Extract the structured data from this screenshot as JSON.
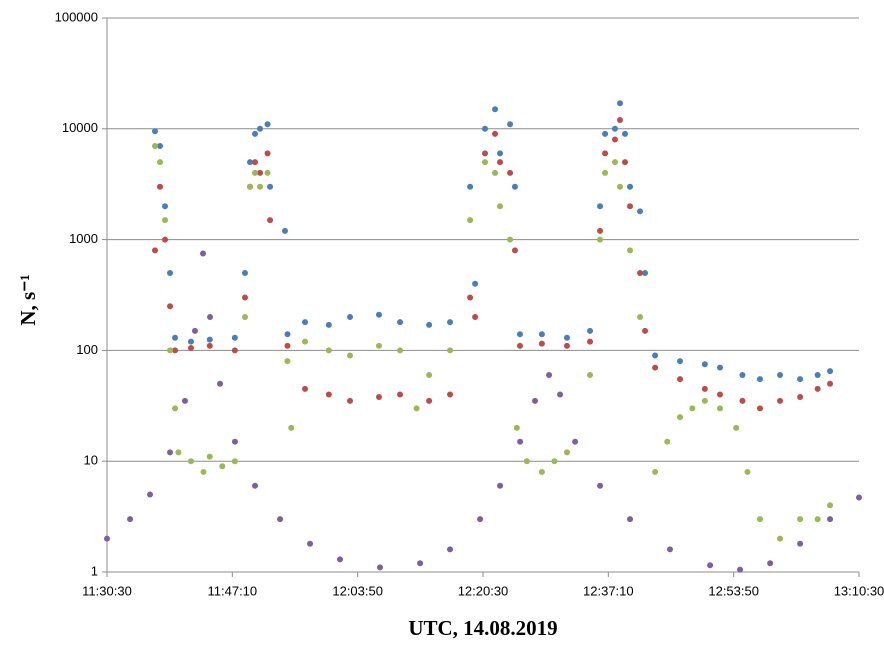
{
  "chart_data": {
    "type": "scatter",
    "xlabel": "UTC, 14.08.2019",
    "ylabel": "N, s⁻¹",
    "xlim": [
      41430,
      47430
    ],
    "xticks": [
      {
        "value": 41430,
        "label": "11:30:30"
      },
      {
        "value": 42430,
        "label": "11:47:10"
      },
      {
        "value": 43430,
        "label": "12:03:50"
      },
      {
        "value": 44430,
        "label": "12:20:30"
      },
      {
        "value": 45430,
        "label": "12:37:10"
      },
      {
        "value": 46430,
        "label": "12:53:50"
      },
      {
        "value": 47430,
        "label": "13:10:30"
      }
    ],
    "ylim": [
      1,
      100000
    ],
    "yticks": [
      1,
      10,
      100,
      1000,
      10000,
      100000
    ],
    "ylog": true,
    "grid": true,
    "series": [
      {
        "color": "#4a7ebb",
        "x": [
          41813,
          41853,
          41893,
          41933,
          41973,
          42100,
          42250,
          42450,
          42531,
          42571,
          42611,
          42651,
          42711,
          42731,
          42850,
          42870,
          43010,
          43200,
          43369,
          43600,
          43768,
          44000,
          44167,
          44327,
          44367,
          44446,
          44526,
          44566,
          44646,
          44685,
          44725,
          44900,
          45100,
          45284,
          45364,
          45404,
          45483,
          45523,
          45563,
          45603,
          45683,
          45723,
          45803,
          46002,
          46200,
          46321,
          46500,
          46640,
          46800,
          46960,
          47100,
          47199
        ],
        "values": [
          9500,
          7000,
          2000,
          500,
          130,
          120,
          125,
          130,
          500,
          5000,
          9000,
          10000,
          11000,
          3000,
          1200,
          140,
          180,
          170,
          200,
          210,
          180,
          170,
          180,
          3000,
          400,
          10000,
          15000,
          6000,
          11000,
          3000,
          140,
          140,
          130,
          150,
          2000,
          9000,
          10000,
          17000,
          9000,
          3000,
          1800,
          500,
          90,
          80,
          75,
          70,
          60,
          55,
          60,
          55,
          60,
          65
        ]
      },
      {
        "color": "#be4b48",
        "x": [
          41813,
          41853,
          41893,
          41933,
          41973,
          42100,
          42250,
          42450,
          42531,
          42571,
          42611,
          42651,
          42711,
          42731,
          42870,
          43010,
          43200,
          43369,
          43600,
          43768,
          44000,
          44167,
          44327,
          44367,
          44446,
          44526,
          44566,
          44646,
          44685,
          44725,
          44900,
          45100,
          45284,
          45364,
          45404,
          45483,
          45523,
          45563,
          45603,
          45683,
          45723,
          45803,
          46002,
          46200,
          46321,
          46500,
          46640,
          46800,
          46960,
          47100,
          47199
        ],
        "values": [
          800,
          3000,
          1000,
          250,
          100,
          105,
          110,
          100,
          300,
          3000,
          5000,
          4000,
          6000,
          1500,
          110,
          45,
          40,
          35,
          38,
          40,
          35,
          40,
          300,
          200,
          6000,
          9000,
          5000,
          4000,
          800,
          110,
          115,
          110,
          120,
          1200,
          6000,
          8000,
          12000,
          5000,
          2000,
          500,
          150,
          70,
          55,
          45,
          40,
          35,
          30,
          35,
          38,
          45,
          50
        ]
      },
      {
        "color": "#98b954",
        "x": [
          41813,
          41853,
          41893,
          41933,
          41973,
          42000,
          42100,
          42200,
          42250,
          42350,
          42450,
          42531,
          42571,
          42611,
          42651,
          42711,
          42870,
          42900,
          43010,
          43200,
          43369,
          43600,
          43768,
          43900,
          44000,
          44167,
          44327,
          44446,
          44526,
          44566,
          44646,
          44700,
          44780,
          44900,
          45000,
          45100,
          45284,
          45364,
          45404,
          45483,
          45523,
          45603,
          45683,
          45803,
          45900,
          46002,
          46100,
          46200,
          46321,
          46450,
          46540,
          46640,
          46800,
          46960,
          47100,
          47199
        ],
        "values": [
          7000,
          5000,
          1500,
          100,
          30,
          12,
          10,
          8,
          11,
          9,
          10,
          200,
          3000,
          4000,
          3000,
          4000,
          80,
          20,
          120,
          100,
          90,
          110,
          100,
          30,
          60,
          100,
          1500,
          5000,
          4000,
          2000,
          1000,
          20,
          10,
          8,
          10,
          12,
          60,
          1000,
          4000,
          5000,
          3000,
          800,
          200,
          8,
          15,
          25,
          30,
          35,
          30,
          20,
          8,
          3,
          2,
          3,
          3,
          4
        ]
      },
      {
        "color": "#7d5fa0",
        "x": [
          41430,
          41614,
          41773,
          41933,
          42052,
          42132,
          42196,
          42252,
          42332,
          42451,
          42611,
          42811,
          43050,
          43289,
          43608,
          43928,
          44167,
          44407,
          44566,
          44726,
          44845,
          44957,
          45045,
          45165,
          45364,
          45603,
          45922,
          46242,
          46481,
          46721,
          46960,
          47199,
          47430
        ],
        "values": [
          2,
          3,
          5,
          12,
          35,
          150,
          750,
          200,
          50,
          15,
          6,
          3,
          1.8,
          1.3,
          1.1,
          1.2,
          1.6,
          3,
          6,
          15,
          35,
          60,
          40,
          15,
          6,
          3,
          1.6,
          1.15,
          1.05,
          1.2,
          1.8,
          3,
          4.7
        ]
      }
    ]
  }
}
